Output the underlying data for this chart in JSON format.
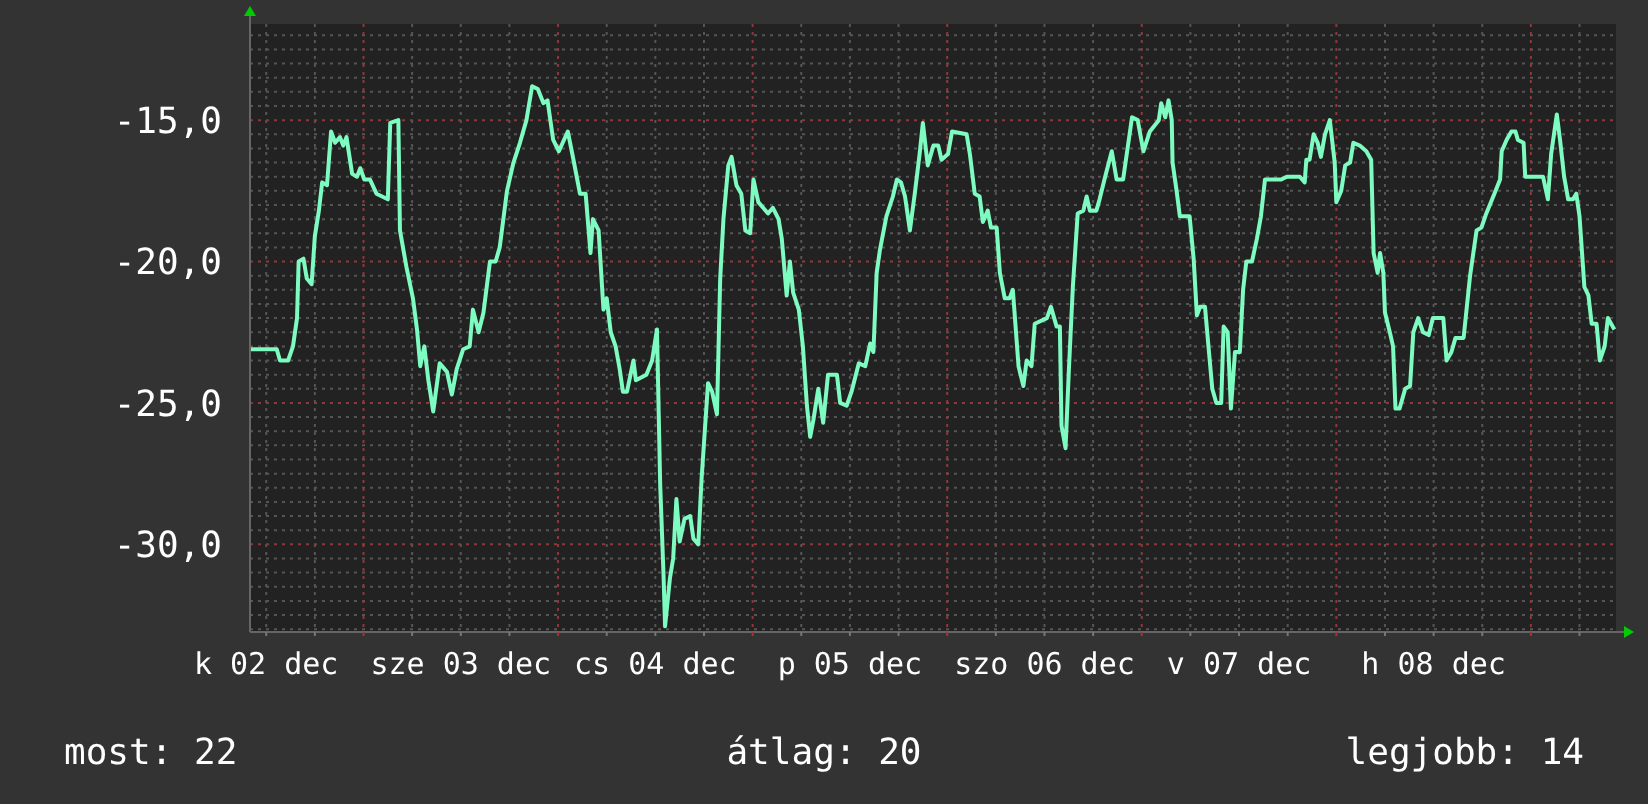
{
  "chart_data": {
    "type": "line",
    "color": "#7dfbc0",
    "grid": true,
    "marker": "none",
    "line_style": "solid",
    "xlim": [
      "--12-02T10:00",
      "--12-09T10:30"
    ],
    "ylim": [
      -33.1,
      -11.6
    ],
    "xticks": [
      {
        "value": "--12-02T12:00",
        "label": "k 02 dec"
      },
      {
        "value": "--12-02T18:00",
        "label": null
      },
      {
        "value": "--12-03T00:00",
        "label": null
      },
      {
        "value": "--12-03T06:00",
        "label": null
      },
      {
        "value": "--12-03T12:00",
        "label": "sze 03 dec"
      },
      {
        "value": "--12-03T18:00",
        "label": null
      },
      {
        "value": "--12-04T00:00",
        "label": null
      },
      {
        "value": "--12-04T06:00",
        "label": null
      },
      {
        "value": "--12-04T12:00",
        "label": "cs 04 dec"
      },
      {
        "value": "--12-04T18:00",
        "label": null
      },
      {
        "value": "--12-05T00:00",
        "label": null
      },
      {
        "value": "--12-05T06:00",
        "label": null
      },
      {
        "value": "--12-05T12:00",
        "label": "p 05 dec"
      },
      {
        "value": "--12-05T18:00",
        "label": null
      },
      {
        "value": "--12-06T00:00",
        "label": null
      },
      {
        "value": "--12-06T06:00",
        "label": null
      },
      {
        "value": "--12-06T12:00",
        "label": "szo 06 dec"
      },
      {
        "value": "--12-06T18:00",
        "label": null
      },
      {
        "value": "--12-07T00:00",
        "label": null
      },
      {
        "value": "--12-07T06:00",
        "label": null
      },
      {
        "value": "--12-07T12:00",
        "label": "v 07 dec"
      },
      {
        "value": "--12-07T18:00",
        "label": null
      },
      {
        "value": "--12-08T00:00",
        "label": null
      },
      {
        "value": "--12-08T06:00",
        "label": null
      },
      {
        "value": "--12-08T12:00",
        "label": "h 08 dec"
      },
      {
        "value": "--12-08T18:00",
        "label": null
      },
      {
        "value": "--12-09T00:00",
        "label": null
      },
      {
        "value": "--12-09T06:00",
        "label": null
      }
    ],
    "yticks": [
      {
        "value": -33,
        "label": null
      },
      {
        "value": -32.5,
        "label": null
      },
      {
        "value": -32,
        "label": null
      },
      {
        "value": -31.5,
        "label": null
      },
      {
        "value": -31,
        "label": null
      },
      {
        "value": -30.5,
        "label": null
      },
      {
        "value": -30,
        "label": "-30,0"
      },
      {
        "value": -29.5,
        "label": null
      },
      {
        "value": -29,
        "label": null
      },
      {
        "value": -28.5,
        "label": null
      },
      {
        "value": -28,
        "label": null
      },
      {
        "value": -27.5,
        "label": null
      },
      {
        "value": -27,
        "label": null
      },
      {
        "value": -26.5,
        "label": null
      },
      {
        "value": -26,
        "label": null
      },
      {
        "value": -25.5,
        "label": null
      },
      {
        "value": -25,
        "label": "-25,0"
      },
      {
        "value": -24.5,
        "label": null
      },
      {
        "value": -24,
        "label": null
      },
      {
        "value": -23.5,
        "label": null
      },
      {
        "value": -23,
        "label": null
      },
      {
        "value": -22.5,
        "label": null
      },
      {
        "value": -22,
        "label": null
      },
      {
        "value": -21.5,
        "label": null
      },
      {
        "value": -21,
        "label": null
      },
      {
        "value": -20.5,
        "label": null
      },
      {
        "value": -20,
        "label": "-20,0"
      },
      {
        "value": -19.5,
        "label": null
      },
      {
        "value": -19,
        "label": null
      },
      {
        "value": -18.5,
        "label": null
      },
      {
        "value": -18,
        "label": null
      },
      {
        "value": -17.5,
        "label": null
      },
      {
        "value": -17,
        "label": null
      },
      {
        "value": -16.5,
        "label": null
      },
      {
        "value": -16,
        "label": null
      },
      {
        "value": -15.5,
        "label": null
      },
      {
        "value": -15,
        "label": "-15,0"
      },
      {
        "value": -14.5,
        "label": null
      },
      {
        "value": -14,
        "label": null
      },
      {
        "value": -13.5,
        "label": null
      },
      {
        "value": -13,
        "label": null
      },
      {
        "value": -12.5,
        "label": null
      },
      {
        "value": -12,
        "label": null
      }
    ],
    "annotations": [
      "most: 22",
      "átlag: 20",
      "legjobb: 14"
    ],
    "x": [
      "--12-02T10:00",
      "--12-02T13:18",
      "--12-02T13:42",
      "--12-02T14:42",
      "--12-02T15:18",
      "--12-02T15:48",
      "--12-02T16:00",
      "--12-02T16:36",
      "--12-02T17:00",
      "--12-02T17:36",
      "--12-02T18:00",
      "--12-02T18:30",
      "--12-02T18:54",
      "--12-02T19:30",
      "--12-02T20:00",
      "--12-02T20:30",
      "--12-02T21:06",
      "--12-02T21:30",
      "--12-02T21:54",
      "--12-02T22:36",
      "--12-02T23:12",
      "--12-02T23:36",
      "--12-03T00:06",
      "--12-03T00:48",
      "--12-03T01:36",
      "--12-03T03:00",
      "--12-03T03:18",
      "--12-03T04:18",
      "--12-03T04:30",
      "--12-03T05:18",
      "--12-03T06:06",
      "--12-03T06:36",
      "--12-03T07:00",
      "--12-03T07:30",
      "--12-03T08:00",
      "--12-03T08:36",
      "--12-03T09:24",
      "--12-03T10:18",
      "--12-03T10:54",
      "--12-03T11:30",
      "--12-03T12:18",
      "--12-03T13:06",
      "--12-03T13:30",
      "--12-03T14:12",
      "--12-03T14:48",
      "--12-03T15:36",
      "--12-03T16:18",
      "--12-03T16:48",
      "--12-03T17:42",
      "--12-03T18:30",
      "--12-03T19:18",
      "--12-03T20:06",
      "--12-03T20:48",
      "--12-03T21:30",
      "--12-03T22:12",
      "--12-03T22:42",
      "--12-03T23:24",
      "--12-04T00:06",
      "--12-04T01:12",
      "--12-04T01:54",
      "--12-04T02:42",
      "--12-04T03:24",
      "--12-04T04:00",
      "--12-04T04:18",
      "--12-04T05:00",
      "--12-04T05:36",
      "--12-04T06:00",
      "--12-04T06:30",
      "--12-04T07:06",
      "--12-04T07:36",
      "--12-04T08:00",
      "--12-04T08:30",
      "--12-04T09:18",
      "--12-04T09:36",
      "--12-04T10:54",
      "--12-04T11:36",
      "--12-04T12:12",
      "--12-04T12:36",
      "--12-04T13:00",
      "--12-04T13:12",
      "--12-04T13:48",
      "--12-04T14:12",
      "--12-04T14:36",
      "--12-04T15:00",
      "--12-04T15:36",
      "--12-04T16:18",
      "--12-04T16:42",
      "--12-04T17:18",
      "--12-04T17:42",
      "--12-04T18:06",
      "--12-04T18:30",
      "--12-04T19:00",
      "--12-04T19:36",
      "--12-04T20:00",
      "--12-04T20:24",
      "--12-04T21:00",
      "--12-04T21:24",
      "--12-04T22:00",
      "--12-04T22:36",
      "--12-04T23:06",
      "--12-04T23:42",
      "--12-05T00:06",
      "--12-05T00:42",
      "--12-05T01:18",
      "--12-05T01:54",
      "--12-05T02:30",
      "--12-05T03:12",
      "--12-05T03:36",
      "--12-05T04:12",
      "--12-05T04:36",
      "--12-05T05:00",
      "--12-05T05:42",
      "--12-05T06:12",
      "--12-05T06:42",
      "--12-05T07:06",
      "--12-05T07:30",
      "--12-05T08:06",
      "--12-05T08:42",
      "--12-05T09:18",
      "--12-05T10:24",
      "--12-05T10:48",
      "--12-05T11:36",
      "--12-05T12:12",
      "--12-05T13:06",
      "--12-05T13:54",
      "--12-05T14:30",
      "--12-05T14:54",
      "--12-05T15:18",
      "--12-05T15:42",
      "--12-05T16:30",
      "--12-05T17:18",
      "--12-05T17:48",
      "--12-05T18:18",
      "--12-05T18:48",
      "--12-05T19:24",
      "--12-05T20:00",
      "--12-05T20:36",
      "--12-05T21:00",
      "--12-05T21:36",
      "--12-05T22:18",
      "--12-05T22:54",
      "--12-05T23:18",
      "--12-06T00:06",
      "--12-06T00:36",
      "--12-06T02:24",
      "--12-06T02:48",
      "--12-06T03:24",
      "--12-06T04:00",
      "--12-06T04:24",
      "--12-06T05:00",
      "--12-06T05:24",
      "--12-06T06:06",
      "--12-06T06:30",
      "--12-06T07:06",
      "--12-06T07:42",
      "--12-06T08:06",
      "--12-06T08:48",
      "--12-06T09:24",
      "--12-06T09:48",
      "--12-06T10:24",
      "--12-06T10:48",
      "--12-06T12:18",
      "--12-06T12:48",
      "--12-06T13:30",
      "--12-06T13:54",
      "--12-06T14:06",
      "--12-06T14:36",
      "--12-06T15:00",
      "--12-06T15:30",
      "--12-06T16:06",
      "--12-06T16:48",
      "--12-06T17:12",
      "--12-06T17:36",
      "--12-06T18:24",
      "--12-06T18:48",
      "--12-06T19:24",
      "--12-06T20:18",
      "--12-06T20:54",
      "--12-06T21:42",
      "--12-06T22:48",
      "--12-06T23:30",
      "--12-07T00:12",
      "--12-07T01:00",
      "--12-07T02:06",
      "--12-07T02:24",
      "--12-07T02:54",
      "--12-07T03:18",
      "--12-07T03:42",
      "--12-07T03:48",
      "--12-07T04:18",
      "--12-07T04:42",
      "--12-07T05:54",
      "--12-07T06:24",
      "--12-07T06:48",
      "--12-07T07:12",
      "--12-07T07:48",
      "--12-07T08:12",
      "--12-07T08:42",
      "--12-07T09:12",
      "--12-07T09:48",
      "--12-07T10:06",
      "--12-07T10:36",
      "--12-07T11:00",
      "--12-07T11:30",
      "--12-07T12:06",
      "--12-07T12:30",
      "--12-07T12:54",
      "--12-07T13:36",
      "--12-07T14:12",
      "--12-07T14:42",
      "--12-07T15:12",
      "--12-07T16:36",
      "--12-07T17:12",
      "--12-07T17:54",
      "--12-07T19:30",
      "--12-07T20:06",
      "--12-07T20:18",
      "--12-07T20:42",
      "--12-07T21:12",
      "--12-07T21:42",
      "--12-07T22:06",
      "--12-07T22:36",
      "--12-07T23:12",
      "--12-07T23:48",
      "--12-08T00:00",
      "--12-08T00:36",
      "--12-08T01:06",
      "--12-08T01:42",
      "--12-08T02:06",
      "--12-08T02:54",
      "--12-08T03:42",
      "--12-08T04:18",
      "--12-08T04:36",
      "--12-08T05:06",
      "--12-08T05:24",
      "--12-08T05:48",
      "--12-08T06:00",
      "--12-08T06:36",
      "--12-08T07:00",
      "--12-08T07:18",
      "--12-08T07:48",
      "--12-08T08:30",
      "--12-08T09:06",
      "--12-08T09:30",
      "--12-08T10:06",
      "--12-08T10:42",
      "--12-08T11:24",
      "--12-08T11:54",
      "--12-08T13:12",
      "--12-08T13:36",
      "--12-08T14:12",
      "--12-08T14:42",
      "--12-08T15:42",
      "--12-08T16:06",
      "--12-08T16:30",
      "--12-08T17:18",
      "--12-08T17:54",
      "--12-08T18:30",
      "--12-08T19:30",
      "--12-08T20:12",
      "--12-08T20:24",
      "--12-08T21:00",
      "--12-08T21:36",
      "--12-08T22:06",
      "--12-08T22:24",
      "--12-08T23:06",
      "--12-08T23:18",
      "--12-09T01:30",
      "--12-09T02:06",
      "--12-09T02:30",
      "--12-09T03:12",
      "--12-09T03:36",
      "--12-09T04:06",
      "--12-09T04:36",
      "--12-09T05:12",
      "--12-09T05:36",
      "--12-09T06:00",
      "--12-09T06:36",
      "--12-09T07:06",
      "--12-09T07:30",
      "--12-09T08:06",
      "--12-09T08:30",
      "--12-09T09:06",
      "--12-09T09:30",
      "--12-09T09:54",
      "--12-09T10:18"
    ],
    "values": [
      -23.1,
      -23.1,
      -23.5,
      -23.5,
      -23.0,
      -22.0,
      -20.0,
      -19.9,
      -20.6,
      -20.8,
      -19.1,
      -18.2,
      -17.2,
      -17.3,
      -15.4,
      -15.8,
      -15.6,
      -15.9,
      -15.6,
      -16.9,
      -17.0,
      -16.7,
      -17.1,
      -17.1,
      -17.6,
      -17.8,
      -15.1,
      -15.0,
      -18.9,
      -20.2,
      -21.3,
      -22.4,
      -23.7,
      -23.0,
      -24.2,
      -25.3,
      -23.6,
      -23.9,
      -24.7,
      -23.8,
      -23.1,
      -23.0,
      -21.7,
      -22.5,
      -21.8,
      -20.0,
      -20.0,
      -19.5,
      -17.5,
      -16.5,
      -15.8,
      -15.0,
      -13.8,
      -13.9,
      -14.4,
      -14.3,
      -15.7,
      -16.1,
      -15.4,
      -16.4,
      -17.6,
      -17.6,
      -19.7,
      -18.5,
      -18.9,
      -21.7,
      -21.3,
      -22.5,
      -23.0,
      -23.8,
      -24.6,
      -24.6,
      -23.5,
      -24.2,
      -24.0,
      -23.5,
      -22.4,
      -27.9,
      -31.0,
      -32.9,
      -31.2,
      -30.5,
      -28.4,
      -29.9,
      -29.1,
      -29.0,
      -29.8,
      -30.0,
      -27.7,
      -26.0,
      -24.3,
      -24.6,
      -25.4,
      -20.6,
      -18.5,
      -16.6,
      -16.3,
      -17.3,
      -17.6,
      -18.9,
      -19.0,
      -17.1,
      -17.9,
      -18.1,
      -18.3,
      -18.1,
      -18.5,
      -19.2,
      -21.2,
      -20.0,
      -21.1,
      -21.7,
      -23.0,
      -25.1,
      -26.2,
      -25.6,
      -24.5,
      -25.7,
      -24.0,
      -24.0,
      -25.0,
      -25.1,
      -24.6,
      -23.6,
      -23.7,
      -22.9,
      -23.2,
      -20.4,
      -19.6,
      -18.4,
      -17.7,
      -17.1,
      -17.2,
      -17.7,
      -18.9,
      -17.6,
      -16.2,
      -15.1,
      -16.6,
      -15.9,
      -15.9,
      -16.4,
      -16.2,
      -15.4,
      -15.5,
      -16.2,
      -17.6,
      -17.7,
      -18.6,
      -18.2,
      -18.8,
      -18.8,
      -20.4,
      -21.3,
      -21.3,
      -21.0,
      -23.7,
      -24.4,
      -23.5,
      -23.7,
      -22.2,
      -22.0,
      -21.6,
      -22.3,
      -22.3,
      -25.8,
      -26.6,
      -23.9,
      -20.9,
      -18.3,
      -18.2,
      -17.7,
      -18.2,
      -18.2,
      -17.8,
      -17.1,
      -16.1,
      -17.1,
      -17.1,
      -14.9,
      -15.0,
      -16.1,
      -15.4,
      -15.0,
      -14.4,
      -14.9,
      -14.3,
      -15.0,
      -16.5,
      -17.5,
      -18.4,
      -18.4,
      -19.9,
      -21.9,
      -21.6,
      -21.6,
      -22.9,
      -24.5,
      -25.0,
      -25.0,
      -22.3,
      -22.5,
      -25.2,
      -23.2,
      -23.2,
      -21.0,
      -20.0,
      -20.0,
      -19.2,
      -18.4,
      -17.1,
      -17.1,
      -17.1,
      -17.0,
      -17.0,
      -17.2,
      -16.4,
      -16.4,
      -15.5,
      -15.8,
      -16.3,
      -15.5,
      -15.0,
      -16.5,
      -17.9,
      -17.5,
      -16.6,
      -16.5,
      -15.8,
      -15.9,
      -16.1,
      -16.4,
      -19.7,
      -20.4,
      -19.7,
      -20.4,
      -21.8,
      -22.5,
      -23.0,
      -25.2,
      -25.2,
      -24.5,
      -24.4,
      -22.5,
      -22.0,
      -22.5,
      -22.6,
      -22.0,
      -22.0,
      -23.5,
      -23.2,
      -22.7,
      -22.7,
      -21.6,
      -20.5,
      -18.9,
      -18.8,
      -18.3,
      -17.6,
      -17.1,
      -16.1,
      -15.7,
      -15.4,
      -15.4,
      -15.7,
      -15.8,
      -17.0,
      -17.0,
      -17.8,
      -16.2,
      -14.8,
      -15.7,
      -17.0,
      -17.8,
      -17.8,
      -17.6,
      -18.4,
      -20.9,
      -21.2,
      -22.2,
      -22.2,
      -23.5,
      -23.0,
      -22.0,
      -22.2,
      -22.4
    ]
  }
}
